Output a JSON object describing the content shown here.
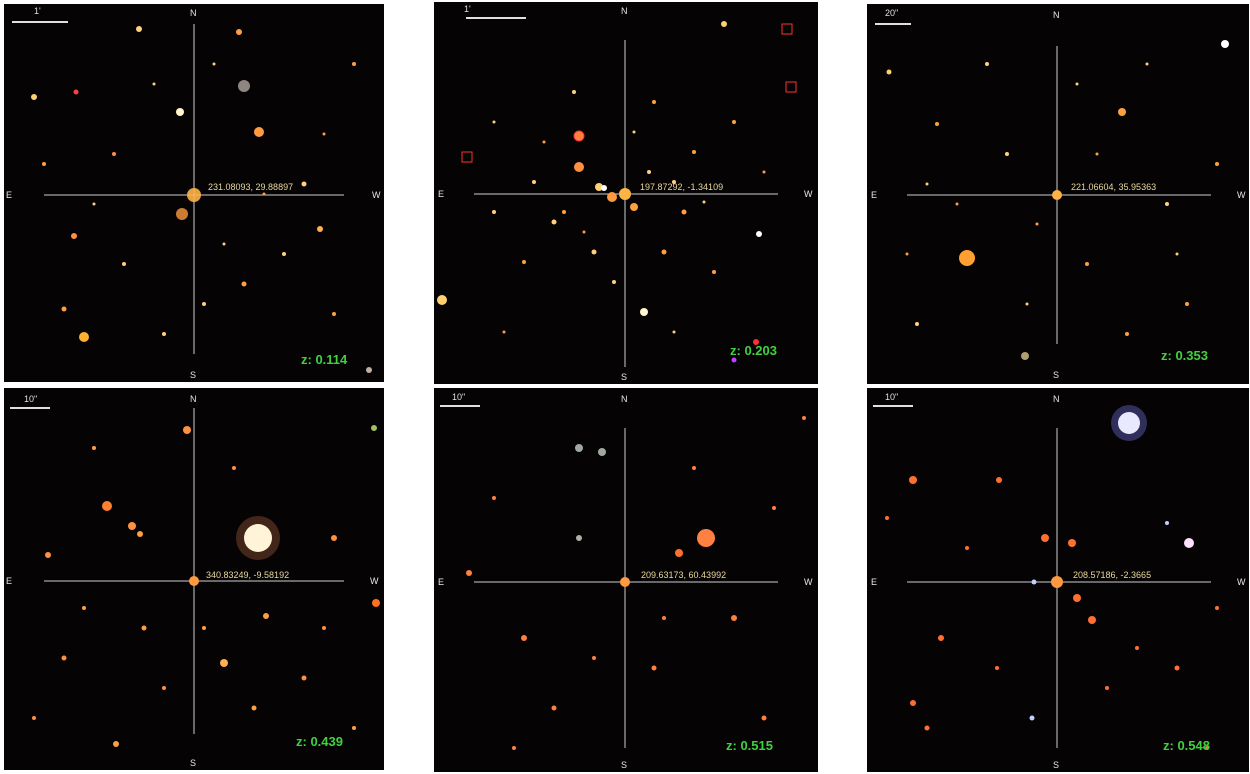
{
  "compass": {
    "north": "N",
    "south": "S",
    "east": "E",
    "west": "W"
  },
  "colors": {
    "background": "#050303",
    "crosshair": "#cfcfcf",
    "redshift_label": "#3fd23f",
    "coordinate_label": "#e8d9a0"
  },
  "panels": [
    {
      "scale_label": "1'",
      "coordinates": "231.08093, 29.88897",
      "redshift": "z: 0.114"
    },
    {
      "scale_label": "1'",
      "coordinates": "197.87292, -1.34109",
      "redshift": "z: 0.203"
    },
    {
      "scale_label": "20\"",
      "coordinates": "221.06604, 35.95363",
      "redshift": "z: 0.353"
    },
    {
      "scale_label": "10\"",
      "coordinates": "340.83249, -9.58192",
      "redshift": "z: 0.439"
    },
    {
      "scale_label": "10\"",
      "coordinates": "209.63173, 60.43992",
      "redshift": "z: 0.515"
    },
    {
      "scale_label": "10\"",
      "coordinates": "208.57186, -2.3665",
      "redshift": "z: 0.548"
    }
  ]
}
